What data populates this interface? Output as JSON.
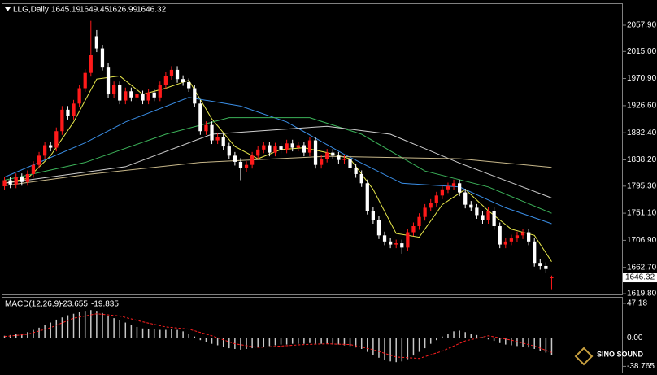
{
  "chart_data": [
    {
      "type": "candlestick",
      "title": "LLG,Daily",
      "open": [
        1795,
        1805,
        1798,
        1810,
        1802,
        1815,
        1830,
        1845,
        1862,
        1858,
        1885,
        1920,
        1910,
        1930,
        1955,
        1980,
        2040,
        2020,
        1990,
        1945,
        1960,
        1935,
        1950,
        1940,
        1945,
        1935,
        1948,
        1940,
        1960,
        1975,
        1985,
        1970,
        1965,
        1955,
        1930,
        1885,
        1895,
        1870,
        1875,
        1860,
        1845,
        1835,
        1825,
        1830,
        1845,
        1855,
        1862,
        1850,
        1860,
        1855,
        1865,
        1858,
        1862,
        1850,
        1870,
        1830,
        1840,
        1850,
        1845,
        1838,
        1840,
        1825,
        1815,
        1800,
        1755,
        1740,
        1715,
        1705,
        1700,
        1702,
        1695,
        1720,
        1730,
        1745,
        1760,
        1768,
        1780,
        1790,
        1795,
        1800,
        1785,
        1765,
        1760,
        1748,
        1740,
        1755,
        1730,
        1700,
        1705,
        1710,
        1715,
        1720,
        1705,
        1670,
        1665,
        1645.19
      ],
      "high": [
        1811,
        1811,
        1816,
        1816,
        1821,
        1836,
        1851,
        1868,
        1868,
        1891,
        1926,
        1926,
        1936,
        1961,
        1986,
        2065,
        2050,
        2026,
        1996,
        1966,
        1966,
        1956,
        1956,
        1951,
        1951,
        1954,
        1954,
        1966,
        1981,
        1991,
        1991,
        1976,
        1971,
        1961,
        1936,
        1901,
        1901,
        1881,
        1881,
        1866,
        1851,
        1841,
        1836,
        1851,
        1861,
        1868,
        1868,
        1866,
        1866,
        1871,
        1871,
        1868,
        1868,
        1876,
        1876,
        1846,
        1856,
        1856,
        1851,
        1846,
        1846,
        1831,
        1821,
        1806,
        1761,
        1746,
        1721,
        1711,
        1708,
        1708,
        1726,
        1736,
        1751,
        1766,
        1774,
        1786,
        1796,
        1801,
        1806,
        1806,
        1791,
        1771,
        1766,
        1754,
        1761,
        1761,
        1736,
        1711,
        1716,
        1721,
        1726,
        1726,
        1711,
        1676,
        1671,
        1649.45
      ],
      "low": [
        1789,
        1792,
        1792,
        1796,
        1796,
        1809,
        1824,
        1839,
        1852,
        1852,
        1879,
        1904,
        1904,
        1924,
        1949,
        1974,
        2014,
        1984,
        1939,
        1939,
        1929,
        1929,
        1934,
        1934,
        1929,
        1929,
        1934,
        1934,
        1954,
        1969,
        1964,
        1959,
        1949,
        1924,
        1879,
        1879,
        1864,
        1864,
        1854,
        1839,
        1829,
        1805,
        1819,
        1824,
        1839,
        1849,
        1844,
        1844,
        1849,
        1849,
        1852,
        1852,
        1844,
        1844,
        1824,
        1824,
        1834,
        1839,
        1832,
        1832,
        1819,
        1809,
        1794,
        1749,
        1734,
        1709,
        1699,
        1694,
        1694,
        1685,
        1689,
        1714,
        1724,
        1739,
        1754,
        1762,
        1774,
        1784,
        1789,
        1779,
        1759,
        1754,
        1742,
        1734,
        1734,
        1724,
        1694,
        1694,
        1699,
        1704,
        1709,
        1699,
        1664,
        1659,
        1654,
        1626.99
      ],
      "close": [
        1805,
        1798,
        1810,
        1802,
        1815,
        1830,
        1845,
        1862,
        1858,
        1885,
        1920,
        1910,
        1930,
        1955,
        1980,
        2010,
        2020,
        1990,
        1945,
        1960,
        1935,
        1950,
        1940,
        1945,
        1935,
        1948,
        1940,
        1960,
        1975,
        1985,
        1970,
        1965,
        1955,
        1930,
        1885,
        1895,
        1870,
        1875,
        1860,
        1845,
        1835,
        1825,
        1830,
        1845,
        1855,
        1862,
        1850,
        1860,
        1855,
        1865,
        1858,
        1862,
        1850,
        1870,
        1830,
        1840,
        1850,
        1845,
        1838,
        1840,
        1825,
        1815,
        1800,
        1755,
        1740,
        1715,
        1705,
        1700,
        1702,
        1695,
        1720,
        1730,
        1745,
        1760,
        1768,
        1780,
        1790,
        1795,
        1800,
        1785,
        1765,
        1760,
        1748,
        1740,
        1755,
        1730,
        1700,
        1705,
        1710,
        1715,
        1720,
        1705,
        1670,
        1665,
        1660,
        1646.32
      ],
      "up_color": "#ff1a1a",
      "down_color": "#ffffff",
      "ylim": [
        1618.5,
        2092.4
      ],
      "yticks": [
        {
          "value": 2057.9,
          "label": "2057.90"
        },
        {
          "value": 2015,
          "label": "2015.00"
        },
        {
          "value": 1970.9,
          "label": "1970.90"
        },
        {
          "value": 1926.6,
          "label": "1926.60"
        },
        {
          "value": 1882.4,
          "label": "1882.40"
        },
        {
          "value": 1838.2,
          "label": "1838.20"
        },
        {
          "value": 1795.3,
          "label": "1795.30"
        },
        {
          "value": 1751.1,
          "label": "1751.10"
        },
        {
          "value": 1706.9,
          "label": "1706.90"
        },
        {
          "value": 1662.7,
          "label": "1662.70"
        },
        {
          "value": 1619.8,
          "label": "1619.80"
        }
      ],
      "moving_averages": [
        {
          "color": "#e6e64a",
          "x": [
            0,
            4,
            8,
            12,
            16,
            20,
            24,
            28,
            32,
            36,
            40,
            44,
            48,
            52,
            56,
            60,
            64,
            68,
            72,
            76,
            80,
            84,
            88,
            92,
            95
          ],
          "values": [
            1800,
            1808,
            1845,
            1900,
            1970,
            1975,
            1945,
            1955,
            1968,
            1905,
            1860,
            1840,
            1855,
            1858,
            1850,
            1840,
            1790,
            1718,
            1712,
            1765,
            1790,
            1755,
            1725,
            1715,
            1672
          ]
        },
        {
          "color": "#3a8ee6",
          "x": [
            0,
            14,
            21,
            32,
            41,
            49,
            59,
            69,
            79,
            87,
            95
          ],
          "values": [
            1810,
            1866,
            1900,
            1940,
            1926,
            1900,
            1847,
            1800,
            1794,
            1760,
            1734
          ]
        },
        {
          "color": "#3cb35a",
          "x": [
            0,
            14,
            28,
            39,
            53,
            62,
            73,
            84,
            95
          ],
          "values": [
            1805,
            1834,
            1880,
            1907,
            1907,
            1880,
            1820,
            1794,
            1751
          ]
        },
        {
          "color": "#d0d0d0",
          "x": [
            0,
            21,
            36,
            56,
            67,
            79,
            95
          ],
          "values": [
            1800,
            1827,
            1880,
            1893,
            1880,
            1833,
            1776
          ]
        },
        {
          "color": "#c8b88a",
          "x": [
            0,
            14,
            34,
            56,
            79,
            95
          ],
          "values": [
            1796,
            1814,
            1834,
            1844,
            1840,
            1826
          ]
        }
      ]
    },
    {
      "type": "macd",
      "title": "MACD(12,26,9)",
      "values": [
        3,
        4,
        5,
        6,
        8,
        11,
        14,
        18,
        21,
        25,
        28,
        31,
        33,
        35,
        37,
        38,
        37,
        34,
        30,
        27,
        24,
        21,
        18,
        15,
        13,
        12,
        12,
        11,
        11,
        12,
        11,
        9,
        6,
        2,
        -3,
        -6,
        -8,
        -10,
        -12,
        -14,
        -15,
        -16,
        -15,
        -14,
        -13,
        -12,
        -11,
        -10,
        -9,
        -9,
        -8,
        -8,
        -8,
        -7,
        -8,
        -8,
        -8,
        -9,
        -9,
        -10,
        -11,
        -13,
        -15,
        -19,
        -23,
        -27,
        -30,
        -32,
        -33,
        -32,
        -29,
        -24,
        -19,
        -14,
        -8,
        -3,
        2,
        6,
        9,
        10,
        8,
        6,
        4,
        1,
        -2,
        -4,
        -7,
        -9,
        -10,
        -11,
        -12,
        -13,
        -15,
        -18,
        -20,
        -23.655
      ],
      "color": "#c8c8c8",
      "signal": {
        "color": "#ff2020",
        "x": [
          0,
          4,
          8,
          12,
          16,
          20,
          24,
          28,
          32,
          36,
          40,
          44,
          48,
          52,
          56,
          60,
          64,
          68,
          72,
          76,
          80,
          84,
          88,
          92,
          95
        ],
        "values": [
          2,
          5,
          14,
          27,
          33,
          30,
          22,
          15,
          12,
          3,
          -8,
          -13,
          -11,
          -9,
          -8,
          -9,
          -16,
          -26,
          -28,
          -18,
          -4,
          3,
          -3,
          -11,
          -19.835
        ]
      },
      "ylim": [
        -47.2,
        54.9
      ],
      "yticks": [
        47.18,
        {
          "value": 0,
          "label": "0.00"
        },
        -38.765
      ]
    }
  ],
  "watermark": "SINO SOUND"
}
